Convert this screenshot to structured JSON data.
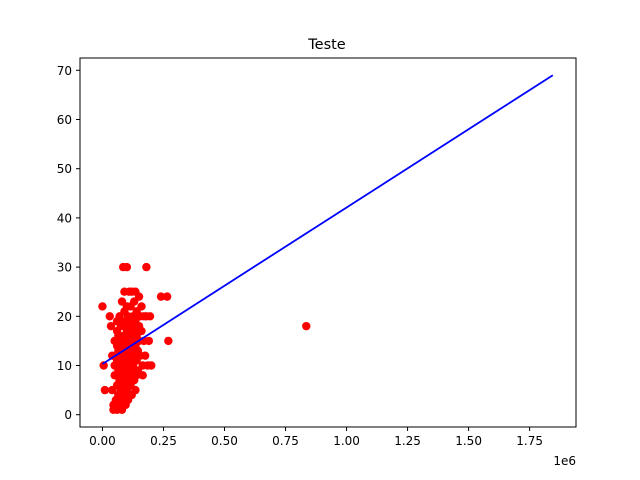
{
  "chart_data": {
    "type": "scatter",
    "title": "Teste",
    "xlabel": "",
    "ylabel": "",
    "x_offset_label": "1e6",
    "xlim": [
      -0.092,
      1.94
    ],
    "ylim": [
      -2.5,
      72.5
    ],
    "x_ticks": [
      0.0,
      0.25,
      0.5,
      0.75,
      1.0,
      1.25,
      1.5,
      1.75
    ],
    "x_tick_labels": [
      "0.00",
      "0.25",
      "0.50",
      "0.75",
      "1.00",
      "1.25",
      "1.50",
      "1.75"
    ],
    "y_ticks": [
      0,
      10,
      20,
      30,
      40,
      50,
      60,
      70
    ],
    "y_tick_labels": [
      "0",
      "10",
      "20",
      "30",
      "40",
      "50",
      "60",
      "70"
    ],
    "grid": false,
    "colors": {
      "points": "#ff0000",
      "line": "#0000ff"
    },
    "series": [
      {
        "kind": "scatter",
        "points": [
          [
            0.0,
            22
          ],
          [
            0.005,
            10
          ],
          [
            0.01,
            5
          ],
          [
            0.03,
            20
          ],
          [
            0.035,
            18
          ],
          [
            0.04,
            12
          ],
          [
            0.04,
            5
          ],
          [
            0.045,
            2
          ],
          [
            0.045,
            1
          ],
          [
            0.05,
            15
          ],
          [
            0.05,
            10
          ],
          [
            0.05,
            8
          ],
          [
            0.055,
            3
          ],
          [
            0.06,
            19
          ],
          [
            0.06,
            17
          ],
          [
            0.06,
            14
          ],
          [
            0.06,
            11
          ],
          [
            0.06,
            6
          ],
          [
            0.06,
            1
          ],
          [
            0.065,
            16
          ],
          [
            0.065,
            13
          ],
          [
            0.065,
            9
          ],
          [
            0.065,
            4
          ],
          [
            0.07,
            20
          ],
          [
            0.07,
            15
          ],
          [
            0.07,
            12
          ],
          [
            0.07,
            7
          ],
          [
            0.07,
            2
          ],
          [
            0.075,
            18
          ],
          [
            0.075,
            10
          ],
          [
            0.075,
            5
          ],
          [
            0.08,
            23
          ],
          [
            0.08,
            19
          ],
          [
            0.08,
            14
          ],
          [
            0.08,
            8
          ],
          [
            0.08,
            3
          ],
          [
            0.08,
            1
          ],
          [
            0.085,
            30
          ],
          [
            0.085,
            16
          ],
          [
            0.085,
            11
          ],
          [
            0.085,
            6
          ],
          [
            0.09,
            25
          ],
          [
            0.09,
            21
          ],
          [
            0.09,
            13
          ],
          [
            0.09,
            9
          ],
          [
            0.09,
            4
          ],
          [
            0.095,
            18
          ],
          [
            0.095,
            12
          ],
          [
            0.095,
            2
          ],
          [
            0.1,
            30
          ],
          [
            0.1,
            22
          ],
          [
            0.1,
            17
          ],
          [
            0.1,
            15
          ],
          [
            0.1,
            10
          ],
          [
            0.1,
            7
          ],
          [
            0.1,
            5
          ],
          [
            0.105,
            20
          ],
          [
            0.105,
            14
          ],
          [
            0.105,
            3
          ],
          [
            0.11,
            25
          ],
          [
            0.11,
            19
          ],
          [
            0.11,
            12
          ],
          [
            0.11,
            8
          ],
          [
            0.115,
            22
          ],
          [
            0.115,
            16
          ],
          [
            0.115,
            11
          ],
          [
            0.115,
            6
          ],
          [
            0.12,
            25
          ],
          [
            0.12,
            18
          ],
          [
            0.12,
            13
          ],
          [
            0.12,
            9
          ],
          [
            0.12,
            4
          ],
          [
            0.125,
            20
          ],
          [
            0.125,
            15
          ],
          [
            0.125,
            10
          ],
          [
            0.13,
            23
          ],
          [
            0.13,
            17
          ],
          [
            0.13,
            12
          ],
          [
            0.13,
            7
          ],
          [
            0.135,
            25
          ],
          [
            0.135,
            19
          ],
          [
            0.135,
            14
          ],
          [
            0.135,
            5
          ],
          [
            0.14,
            21
          ],
          [
            0.14,
            16
          ],
          [
            0.14,
            11
          ],
          [
            0.14,
            8
          ],
          [
            0.145,
            20
          ],
          [
            0.145,
            13
          ],
          [
            0.145,
            9
          ],
          [
            0.15,
            24
          ],
          [
            0.15,
            18
          ],
          [
            0.15,
            15
          ],
          [
            0.155,
            20
          ],
          [
            0.155,
            12
          ],
          [
            0.16,
            22
          ],
          [
            0.16,
            17
          ],
          [
            0.165,
            10
          ],
          [
            0.165,
            8
          ],
          [
            0.17,
            20
          ],
          [
            0.17,
            15
          ],
          [
            0.175,
            12
          ],
          [
            0.18,
            30
          ],
          [
            0.18,
            20
          ],
          [
            0.185,
            10
          ],
          [
            0.19,
            15
          ],
          [
            0.195,
            20
          ],
          [
            0.2,
            10
          ],
          [
            0.24,
            24
          ],
          [
            0.265,
            24
          ],
          [
            0.27,
            15
          ],
          [
            0.835,
            18
          ]
        ]
      },
      {
        "kind": "line",
        "points": [
          [
            0.0,
            10.3
          ],
          [
            1.845,
            69.0
          ]
        ]
      }
    ]
  }
}
